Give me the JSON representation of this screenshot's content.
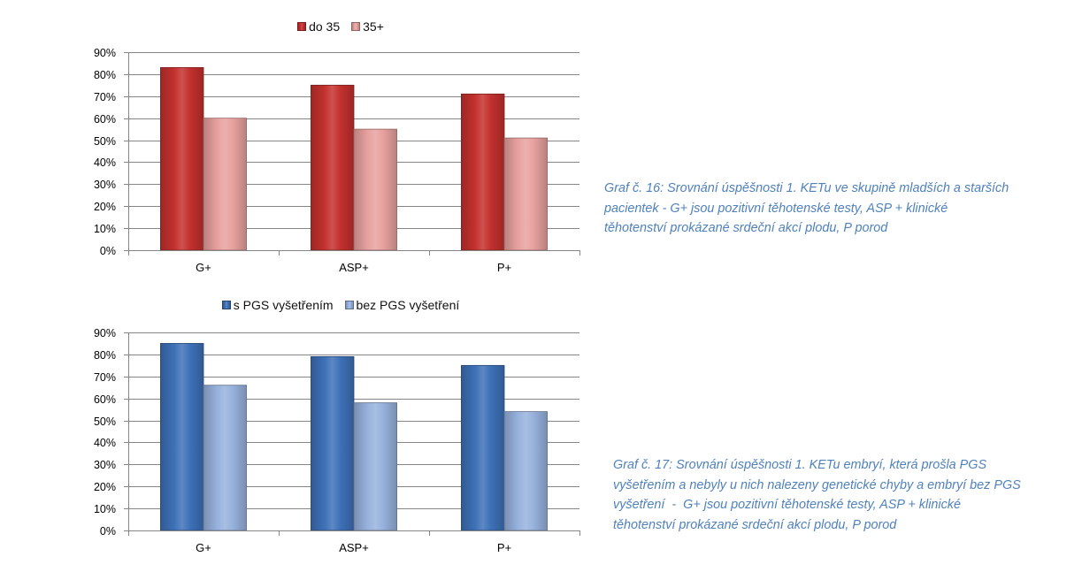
{
  "chart_data": [
    {
      "type": "bar",
      "categories": [
        "G+",
        "ASP+",
        "P+"
      ],
      "series": [
        {
          "name": "do 35",
          "values": [
            83,
            75,
            71
          ],
          "color": "#C3312E"
        },
        {
          "name": "35+",
          "values": [
            60,
            55,
            51
          ],
          "color": "#E7A19F"
        }
      ],
      "ylim": [
        0,
        90
      ],
      "y_ticks": [
        "0%",
        "10%",
        "20%",
        "30%",
        "40%",
        "50%",
        "60%",
        "70%",
        "80%",
        "90%"
      ],
      "grid": true,
      "legend": "top",
      "caption": [
        "Graf č. 16: Srovnání úspěšnosti 1. KETu ve skupině mladších a starších",
        "pacientek - G+ jsou pozitivní těhotenské testy, ASP + klinické",
        "těhotenství prokázané srdeční akcí plodu, P porod"
      ]
    },
    {
      "type": "bar",
      "categories": [
        "G+",
        "ASP+",
        "P+"
      ],
      "series": [
        {
          "name": "s PGS vyšetřením",
          "values": [
            85,
            79,
            75
          ],
          "color": "#3E71B8"
        },
        {
          "name": "bez PGS vyšetření",
          "values": [
            66,
            58,
            54
          ],
          "color": "#97B2DD"
        }
      ],
      "ylim": [
        0,
        90
      ],
      "y_ticks": [
        "0%",
        "10%",
        "20%",
        "30%",
        "40%",
        "50%",
        "60%",
        "70%",
        "80%",
        "90%"
      ],
      "grid": true,
      "legend": "top",
      "caption": [
        "Graf č. 17: Srovnání úspěšnosti 1. KETu embryí, která prošla PGS",
        "vyšetřením a nebyly u nich nalezeny genetické chyby a embryí bez PGS",
        "vyšetření  -  G+ jsou pozitivní těhotenské testy, ASP + klinické",
        "těhotenství prokázané srdeční akcí plodu, P porod"
      ]
    }
  ]
}
